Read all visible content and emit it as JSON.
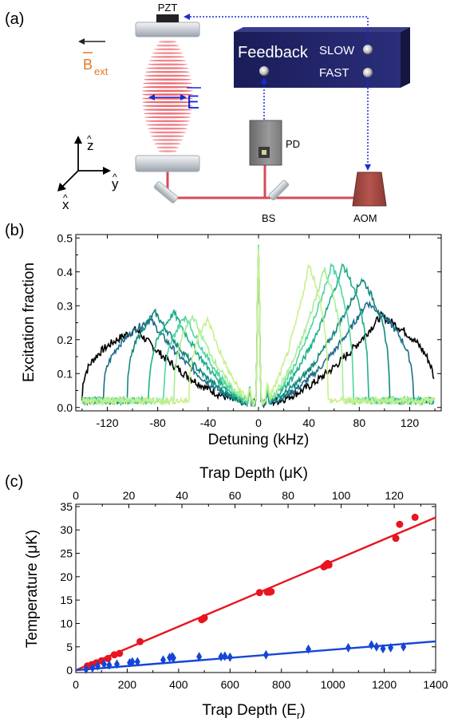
{
  "panel_a": {
    "panel_label": "(a)",
    "labels": {
      "pzt": "PZT",
      "bext_symbol": "B",
      "bext_sub": "ext",
      "e_field": "E",
      "feedback": "Feedback",
      "slow": "SLOW",
      "fast": "FAST",
      "pd": "PD",
      "bs": "BS",
      "aom": "AOM",
      "axis_z": "z",
      "axis_y": "y",
      "axis_x": "x"
    },
    "colors": {
      "beam": "#d64a5a",
      "lattice": "#e8505a",
      "feedback_arrows": "#1a2bd6",
      "feedback_box": "#1e2060",
      "bext": "#e8761e",
      "e_field": "#1a2bd6"
    }
  },
  "chart_data": [
    {
      "panel_label": "(b)",
      "type": "line",
      "xlabel": "Detuning (kHz)",
      "ylabel": "Excitation fraction",
      "xlim": [
        -145,
        145
      ],
      "ylim": [
        -0.01,
        0.51
      ],
      "xticks": [
        -120,
        -80,
        -40,
        0,
        40,
        80,
        120
      ],
      "xtick_labels": [
        "-120",
        "-80",
        "-40",
        "0",
        "40",
        "80",
        "120"
      ],
      "yticks": [
        0.0,
        0.1,
        0.2,
        0.3,
        0.4,
        0.5
      ],
      "ytick_labels": [
        "0.0",
        "0.1",
        "0.2",
        "0.3",
        "0.4",
        "0.5"
      ],
      "carrier_peak": 0.47,
      "series": [
        {
          "color": "#000000",
          "edge": 140,
          "peak_pos": 97,
          "peak": 0.27,
          "neg_peak": 0.23,
          "noise": 0.012
        },
        {
          "color": "#1e6e8a",
          "edge": 123,
          "peak_pos": 86,
          "peak": 0.31,
          "neg_peak": 0.26,
          "noise": 0.01
        },
        {
          "color": "#13897e",
          "edge": 104,
          "peak_pos": 82,
          "peak": 0.38,
          "neg_peak": 0.28,
          "noise": 0.01
        },
        {
          "color": "#1fb08a",
          "edge": 87,
          "peak_pos": 67,
          "peak": 0.42,
          "neg_peak": 0.28,
          "noise": 0.01
        },
        {
          "color": "#4fd6a0",
          "edge": 75,
          "peak_pos": 58,
          "peak": 0.42,
          "neg_peak": 0.27,
          "noise": 0.01
        },
        {
          "color": "#a6ee9a",
          "edge": 67,
          "peak_pos": 52,
          "peak": 0.41,
          "neg_peak": 0.27,
          "noise": 0.01
        },
        {
          "color": "#c8f08c",
          "edge": 55,
          "peak_pos": 40,
          "peak": 0.42,
          "neg_peak": 0.26,
          "noise": 0.01
        }
      ]
    },
    {
      "panel_label": "(c)",
      "type": "scatter",
      "xlabel": "Trap Depth (E",
      "xlabel_sub": "r",
      "xlabel_end": ")",
      "x2label": "Trap Depth (μK)",
      "ylabel": "Temperature (μK)",
      "xlim": [
        0,
        1400
      ],
      "x2lim": [
        0,
        135.6
      ],
      "ylim": [
        -0.5,
        35.5
      ],
      "xticks": [
        0,
        200,
        400,
        600,
        800,
        1000,
        1200,
        1400
      ],
      "xtick_labels": [
        "0",
        "200",
        "400",
        "600",
        "800",
        "1000",
        "1200",
        "1400"
      ],
      "x2ticks": [
        0,
        20,
        40,
        60,
        80,
        100,
        120
      ],
      "x2tick_labels": [
        "0",
        "20",
        "40",
        "60",
        "80",
        "100",
        "120"
      ],
      "yticks": [
        0,
        5,
        10,
        15,
        20,
        25,
        30,
        35
      ],
      "ytick_labels": [
        "0",
        "5",
        "10",
        "15",
        "20",
        "25",
        "30",
        "35"
      ],
      "series": [
        {
          "color": "#e8141e",
          "marker": "circle",
          "fit": {
            "slope": 0.02333,
            "intercept": 0.0
          },
          "x": [
            45,
            62,
            80,
            100,
            125,
            150,
            170,
            250,
            490,
            495,
            500,
            715,
            745,
            755,
            760,
            965,
            970,
            975,
            980,
            985,
            1245,
            1260,
            1320
          ],
          "y": [
            0.9,
            1.2,
            1.6,
            2.0,
            2.5,
            3.3,
            3.6,
            6.1,
            10.8,
            11.0,
            11.2,
            16.6,
            16.7,
            16.7,
            16.8,
            22.1,
            22.3,
            22.6,
            22.8,
            22.5,
            28.2,
            31.2,
            32.7
          ]
        },
        {
          "color": "#1446d6",
          "marker": "diamond",
          "fit": {
            "slope": 0.0044,
            "intercept": 0.0
          },
          "x": [
            40,
            65,
            85,
            110,
            130,
            160,
            210,
            220,
            240,
            340,
            365,
            375,
            380,
            480,
            565,
            580,
            600,
            740,
            905,
            1060,
            1150,
            1170,
            1195,
            1225,
            1275
          ],
          "y": [
            0.2,
            0.5,
            0.9,
            1.3,
            1.1,
            1.3,
            1.6,
            1.8,
            1.8,
            2.2,
            2.7,
            2.9,
            2.6,
            2.9,
            2.9,
            3.0,
            2.8,
            3.3,
            4.5,
            4.8,
            5.4,
            5.0,
            4.6,
            4.8,
            5.0
          ]
        }
      ]
    }
  ]
}
